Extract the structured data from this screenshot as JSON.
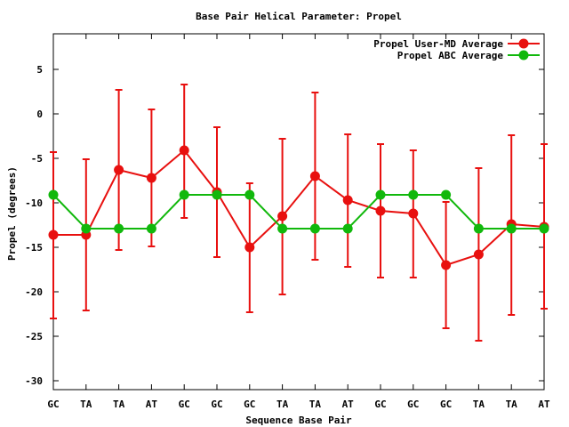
{
  "chart_data": {
    "type": "line",
    "title": "Base Pair Helical Parameter: Propel",
    "xlabel": "Sequence Base Pair",
    "ylabel": "Propel (degrees)",
    "categories": [
      "GC",
      "TA",
      "TA",
      "AT",
      "GC",
      "GC",
      "GC",
      "TA",
      "TA",
      "AT",
      "GC",
      "GC",
      "GC",
      "TA",
      "TA",
      "AT"
    ],
    "ylim": [
      -31,
      9
    ],
    "yticks": [
      5,
      0,
      -5,
      -10,
      -15,
      -20,
      -25,
      -30
    ],
    "ytick_labels": [
      "5",
      "0",
      "-5",
      "-10",
      "-15",
      "-20",
      "-25",
      "-30"
    ],
    "grid": false,
    "legend_position": "top-right",
    "series": [
      {
        "name": "Propel User-MD Average",
        "color": "#e8100f",
        "values": [
          -13.6,
          -13.6,
          -6.3,
          -7.2,
          -4.1,
          -8.8,
          -15.0,
          -11.5,
          -7.0,
          -9.7,
          -10.9,
          -11.2,
          -17.0,
          -15.8,
          -12.4,
          -12.7
        ],
        "error_low": [
          -23.0,
          -22.1,
          -15.3,
          -14.9,
          -11.7,
          -16.1,
          -22.3,
          -20.3,
          -16.4,
          -17.2,
          -18.4,
          -18.4,
          -24.1,
          -25.5,
          -22.6,
          -21.9
        ],
        "error_high": [
          -4.3,
          -5.1,
          2.7,
          0.5,
          3.3,
          -1.5,
          -7.8,
          -2.8,
          2.4,
          -2.3,
          -3.4,
          -4.1,
          -9.9,
          -6.1,
          -2.4,
          -3.4
        ]
      },
      {
        "name": "Propel ABC Average",
        "color": "#11b80c",
        "values": [
          -9.1,
          -12.9,
          -12.9,
          -12.9,
          -9.1,
          -9.1,
          -9.1,
          -12.9,
          -12.9,
          -12.9,
          -9.1,
          -9.1,
          -9.1,
          -12.9,
          -12.9,
          -12.9
        ]
      }
    ]
  }
}
